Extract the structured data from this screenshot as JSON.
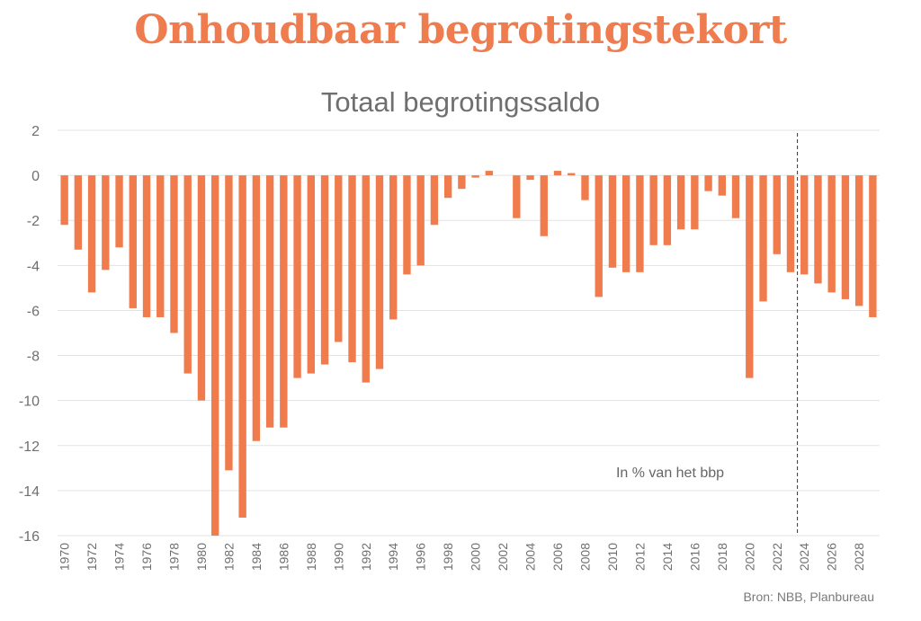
{
  "header": {
    "title": "Onhoudbaar begrotingstekort"
  },
  "chart_data": {
    "type": "bar",
    "title": "Totaal begrotingssaldo",
    "annotation": "In % van het bbp",
    "source": "Bron: NBB, Planbureau",
    "xlabel": "",
    "ylabel": "",
    "ylim": [
      -16,
      2
    ],
    "yticks": [
      2,
      0,
      -2,
      -4,
      -6,
      -8,
      -10,
      -12,
      -14,
      -16
    ],
    "grid": true,
    "legend": "none",
    "bar_color": "#f07c4d",
    "projection_divider_between": [
      "2023",
      "2024"
    ],
    "categories": [
      "1970",
      "1971",
      "1972",
      "1973",
      "1974",
      "1975",
      "1976",
      "1977",
      "1978",
      "1979",
      "1980",
      "1981",
      "1982",
      "1983",
      "1984",
      "1985",
      "1986",
      "1987",
      "1988",
      "1989",
      "1990",
      "1991",
      "1992",
      "1993",
      "1994",
      "1995",
      "1996",
      "1997",
      "1998",
      "1999",
      "2000",
      "2001",
      "2002",
      "2003",
      "2004",
      "2005",
      "2006",
      "2007",
      "2008",
      "2009",
      "2010",
      "2011",
      "2012",
      "2013",
      "2014",
      "2015",
      "2016",
      "2017",
      "2018",
      "2019",
      "2020",
      "2021",
      "2022",
      "2023",
      "2024",
      "2025",
      "2026",
      "2027",
      "2028",
      "2029"
    ],
    "values": [
      -2.2,
      -3.3,
      -5.2,
      -4.2,
      -3.2,
      -5.9,
      -6.3,
      -6.3,
      -7.0,
      -8.8,
      -10.0,
      -16.0,
      -13.1,
      -15.2,
      -11.8,
      -11.2,
      -11.2,
      -9.0,
      -8.8,
      -8.4,
      -7.4,
      -8.3,
      -9.2,
      -8.6,
      -6.4,
      -4.4,
      -4.0,
      -2.2,
      -1.0,
      -0.6,
      -0.1,
      0.2,
      0.0,
      -1.9,
      -0.2,
      -2.7,
      0.2,
      0.1,
      -1.1,
      -5.4,
      -4.1,
      -4.3,
      -4.3,
      -3.1,
      -3.1,
      -2.4,
      -2.4,
      -0.7,
      -0.9,
      -1.9,
      -9.0,
      -5.6,
      -3.5,
      -4.3,
      -4.4,
      -4.8,
      -5.2,
      -5.5,
      -5.8,
      -6.3
    ]
  }
}
